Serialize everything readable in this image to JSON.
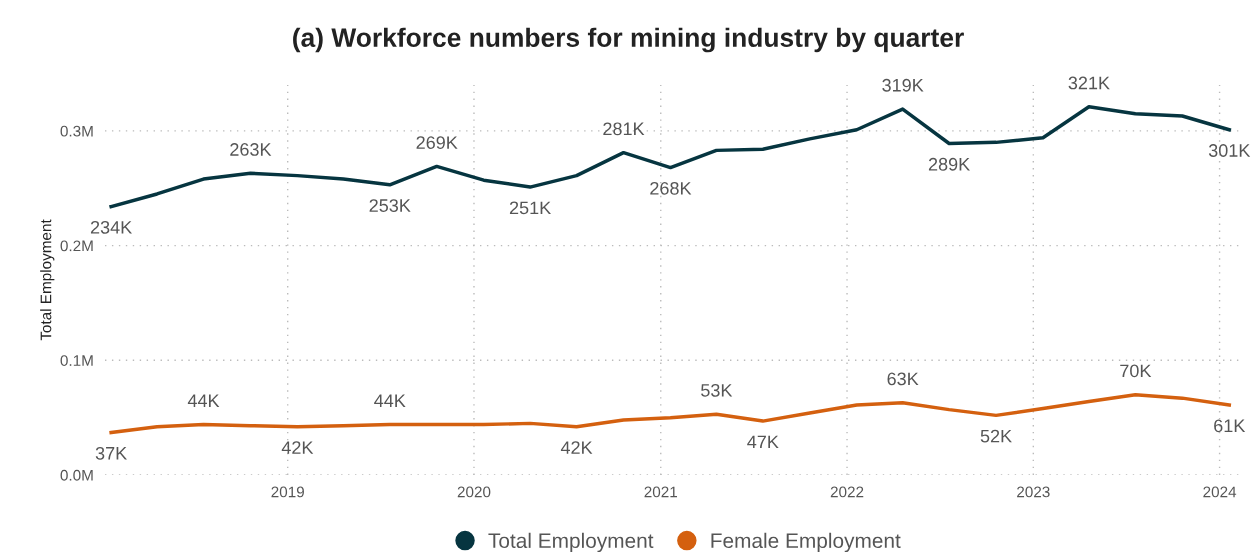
{
  "chart_data": {
    "type": "line",
    "title": "(a) Workforce numbers for mining industry by quarter",
    "ylabel": "Total Employment",
    "x": [
      "2018-01-20",
      "2018-04-20",
      "2018-07-20",
      "2018-10-20",
      "2019-01-20",
      "2019-04-20",
      "2019-07-20",
      "2019-10-20",
      "2020-01-20",
      "2020-04-20",
      "2020-07-20",
      "2020-10-20",
      "2021-01-20",
      "2021-04-20",
      "2021-07-20",
      "2021-10-20",
      "2022-01-20",
      "2022-04-20",
      "2022-07-20",
      "2022-10-20",
      "2023-01-20",
      "2023-04-20",
      "2023-07-20",
      "2023-10-20",
      "2024-01-20"
    ],
    "series": [
      {
        "name": "Total Employment",
        "color": "#063540",
        "values": [
          234000,
          245000,
          258000,
          263000,
          261000,
          258000,
          253000,
          269000,
          257000,
          251000,
          261000,
          281000,
          268000,
          283000,
          284000,
          293000,
          301000,
          319000,
          289000,
          290000,
          294000,
          321000,
          315000,
          313000,
          301000
        ],
        "value_labels": [
          "234K",
          null,
          null,
          "263K",
          null,
          null,
          "253K",
          "269K",
          null,
          "251K",
          null,
          "281K",
          "268K",
          null,
          null,
          null,
          null,
          "319K",
          "289K",
          null,
          null,
          "321K",
          null,
          null,
          "301K"
        ]
      },
      {
        "name": "Female Employment",
        "color": "#d4600f",
        "values": [
          37000,
          42000,
          44000,
          43000,
          42000,
          43000,
          44000,
          44000,
          44000,
          45000,
          42000,
          48000,
          50000,
          53000,
          47000,
          54000,
          61000,
          63000,
          57000,
          52000,
          58000,
          64000,
          70000,
          67000,
          61000
        ],
        "value_labels": [
          "37K",
          null,
          "44K",
          null,
          "42K",
          null,
          "44K",
          null,
          null,
          null,
          "42K",
          null,
          null,
          "53K",
          "47K",
          null,
          null,
          "63K",
          null,
          "52K",
          null,
          null,
          "70K",
          null,
          "61K"
        ]
      }
    ],
    "xlim": [
      "2018-01-08",
      "2024-02-10"
    ],
    "xticks": [
      {
        "value": "2019-01-01",
        "label": "2019"
      },
      {
        "value": "2020-01-01",
        "label": "2020"
      },
      {
        "value": "2021-01-01",
        "label": "2021"
      },
      {
        "value": "2022-01-01",
        "label": "2022"
      },
      {
        "value": "2023-01-01",
        "label": "2023"
      },
      {
        "value": "2024-01-01",
        "label": "2024"
      }
    ],
    "ylim": [
      0,
      340000
    ],
    "yticks": [
      {
        "value": 0,
        "label": "0.0M"
      },
      {
        "value": 100000,
        "label": "0.1M"
      },
      {
        "value": 200000,
        "label": "0.2M"
      },
      {
        "value": 300000,
        "label": "0.3M"
      }
    ],
    "grid": true,
    "legend": "bottom",
    "marker": "none",
    "line_style": "solid"
  }
}
